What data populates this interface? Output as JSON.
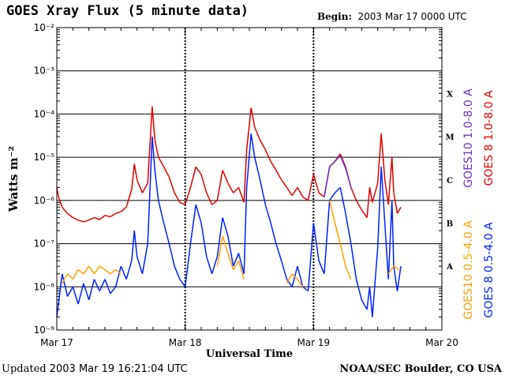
{
  "header": {
    "title": "GOES Xray Flux (5 minute data)",
    "begin_label": "Begin:",
    "begin_value": "2003 Mar 17 0000 UTC"
  },
  "footer": {
    "updated_label": "Updated",
    "updated_value": "2003 Mar 19 16:21:04 UTC",
    "credit": "NOAA/SEC Boulder, CO USA"
  },
  "colors": {
    "goes8_short": "#0020ff",
    "goes10_short": "#ffa000",
    "goes10_long": "#7030c0",
    "goes8_long": "#e00000"
  },
  "chart_data": {
    "type": "line",
    "xlabel": "Universal Time",
    "ylabel": "Watts m⁻²",
    "y_scale": "log",
    "ylim": [
      1e-09,
      0.01
    ],
    "xlim": [
      "2003-03-17",
      "2003-03-20"
    ],
    "x_ticks": [
      "Mar 17",
      "Mar 18",
      "Mar 19",
      "Mar 20"
    ],
    "y_ticks": [
      {
        "value": 1e-09,
        "label": "10⁻⁹"
      },
      {
        "value": 1e-08,
        "label": "10⁻⁸"
      },
      {
        "value": 1e-07,
        "label": "10⁻⁷"
      },
      {
        "value": 1e-06,
        "label": "10⁻⁶"
      },
      {
        "value": 1e-05,
        "label": "10⁻⁵"
      },
      {
        "value": 0.0001,
        "label": "10⁻⁴"
      },
      {
        "value": 0.001,
        "label": "10⁻³"
      },
      {
        "value": 0.01,
        "label": "10⁻²"
      }
    ],
    "flare_classes": [
      {
        "label": "A",
        "y": 3e-08
      },
      {
        "label": "B",
        "y": 3e-07
      },
      {
        "label": "C",
        "y": 3e-06
      },
      {
        "label": "M",
        "y": 3e-05
      },
      {
        "label": "X",
        "y": 0.0003
      }
    ],
    "grid_y": true,
    "legend_position": "right-outside",
    "series": [
      {
        "name": "GOES 8 1.0-8.0 A",
        "color": "#e00000",
        "points": [
          [
            "2003-03-17 00:00",
            2e-06
          ],
          [
            "2003-03-17 00:20",
            1.2e-06
          ],
          [
            "2003-03-17 01:00",
            7e-07
          ],
          [
            "2003-03-17 02:00",
            5e-07
          ],
          [
            "2003-03-17 03:00",
            4e-07
          ],
          [
            "2003-03-17 04:00",
            3.5e-07
          ],
          [
            "2003-03-17 05:00",
            3.2e-07
          ],
          [
            "2003-03-17 06:00",
            3.5e-07
          ],
          [
            "2003-03-17 07:00",
            4e-07
          ],
          [
            "2003-03-17 08:00",
            3.6e-07
          ],
          [
            "2003-03-17 09:00",
            4.5e-07
          ],
          [
            "2003-03-17 10:00",
            4.2e-07
          ],
          [
            "2003-03-17 11:00",
            5e-07
          ],
          [
            "2003-03-17 12:00",
            5.5e-07
          ],
          [
            "2003-03-17 13:00",
            7e-07
          ],
          [
            "2003-03-17 14:00",
            1.8e-06
          ],
          [
            "2003-03-17 14:30",
            7e-06
          ],
          [
            "2003-03-17 15:00",
            3e-06
          ],
          [
            "2003-03-17 16:00",
            1.5e-06
          ],
          [
            "2003-03-17 17:00",
            2.5e-06
          ],
          [
            "2003-03-17 17:50",
            0.00015
          ],
          [
            "2003-03-17 18:20",
            2.5e-05
          ],
          [
            "2003-03-17 19:00",
            1e-05
          ],
          [
            "2003-03-17 20:00",
            6e-06
          ],
          [
            "2003-03-17 21:00",
            3.5e-06
          ],
          [
            "2003-03-17 22:00",
            1.5e-06
          ],
          [
            "2003-03-17 23:00",
            9e-07
          ],
          [
            "2003-03-18 00:00",
            8e-07
          ],
          [
            "2003-03-18 01:00",
            2e-06
          ],
          [
            "2003-03-18 02:00",
            6e-06
          ],
          [
            "2003-03-18 03:00",
            4e-06
          ],
          [
            "2003-03-18 04:00",
            1.5e-06
          ],
          [
            "2003-03-18 05:00",
            8e-07
          ],
          [
            "2003-03-18 06:00",
            1e-06
          ],
          [
            "2003-03-18 07:00",
            5e-06
          ],
          [
            "2003-03-18 08:00",
            2.5e-06
          ],
          [
            "2003-03-18 09:00",
            1.5e-06
          ],
          [
            "2003-03-18 10:00",
            2e-06
          ],
          [
            "2003-03-18 11:00",
            9e-07
          ],
          [
            "2003-03-18 11:30",
            1.5e-05
          ],
          [
            "2003-03-18 12:20",
            0.00014
          ],
          [
            "2003-03-18 13:00",
            5e-05
          ],
          [
            "2003-03-18 14:00",
            2.5e-05
          ],
          [
            "2003-03-18 15:00",
            1.5e-05
          ],
          [
            "2003-03-18 16:00",
            8e-06
          ],
          [
            "2003-03-18 17:00",
            5e-06
          ],
          [
            "2003-03-18 18:00",
            3e-06
          ],
          [
            "2003-03-18 19:00",
            2e-06
          ],
          [
            "2003-03-18 20:00",
            1.3e-06
          ],
          [
            "2003-03-18 21:00",
            2e-06
          ],
          [
            "2003-03-18 22:00",
            1.2e-06
          ],
          [
            "2003-03-18 23:00",
            1e-06
          ],
          [
            "2003-03-19 00:00",
            4e-06
          ],
          [
            "2003-03-19 01:00",
            1.5e-06
          ],
          [
            "2003-03-19 02:00",
            1.2e-06
          ],
          [
            "2003-03-19 03:00",
            6e-06
          ],
          [
            "2003-03-19 04:00",
            8e-06
          ],
          [
            "2003-03-19 05:00",
            1.2e-05
          ],
          [
            "2003-03-19 06:00",
            6e-06
          ],
          [
            "2003-03-19 07:00",
            2e-06
          ],
          [
            "2003-03-19 08:00",
            1e-06
          ],
          [
            "2003-03-19 09:00",
            6e-07
          ],
          [
            "2003-03-19 10:00",
            4e-07
          ],
          [
            "2003-03-19 10:30",
            2e-06
          ],
          [
            "2003-03-19 11:00",
            9e-07
          ],
          [
            "2003-03-19 12:00",
            2.5e-06
          ],
          [
            "2003-03-19 12:40",
            3.5e-05
          ],
          [
            "2003-03-19 13:20",
            3e-06
          ],
          [
            "2003-03-19 14:00",
            8e-07
          ],
          [
            "2003-03-19 14:40",
            1e-05
          ],
          [
            "2003-03-19 15:00",
            1.5e-06
          ],
          [
            "2003-03-19 15:40",
            5e-07
          ],
          [
            "2003-03-19 16:20",
            7e-07
          ]
        ]
      },
      {
        "name": "GOES10 1.0-8.0 A",
        "color": "#7030c0",
        "points": [
          [
            "2003-03-19 02:00",
            1.2e-06
          ],
          [
            "2003-03-19 03:00",
            6e-06
          ],
          [
            "2003-03-19 04:00",
            8e-06
          ],
          [
            "2003-03-19 05:00",
            1.1e-05
          ],
          [
            "2003-03-19 06:00",
            5.5e-06
          ],
          [
            "2003-03-19 07:00",
            2e-06
          ]
        ]
      },
      {
        "name": "GOES 8 0.5-4.0 A",
        "color": "#0020ff",
        "points": [
          [
            "2003-03-17 00:00",
            2e-09
          ],
          [
            "2003-03-17 01:00",
            2e-08
          ],
          [
            "2003-03-17 02:00",
            6e-09
          ],
          [
            "2003-03-17 03:00",
            1e-08
          ],
          [
            "2003-03-17 04:00",
            4e-09
          ],
          [
            "2003-03-17 05:00",
            1.2e-08
          ],
          [
            "2003-03-17 06:00",
            5e-09
          ],
          [
            "2003-03-17 07:00",
            1.5e-08
          ],
          [
            "2003-03-17 08:00",
            8e-09
          ],
          [
            "2003-03-17 09:00",
            1.5e-08
          ],
          [
            "2003-03-17 10:00",
            7e-09
          ],
          [
            "2003-03-17 11:00",
            1e-08
          ],
          [
            "2003-03-17 12:00",
            3e-08
          ],
          [
            "2003-03-17 13:00",
            1.5e-08
          ],
          [
            "2003-03-17 14:00",
            4e-08
          ],
          [
            "2003-03-17 14:30",
            2e-07
          ],
          [
            "2003-03-17 15:00",
            5e-08
          ],
          [
            "2003-03-17 16:00",
            2e-08
          ],
          [
            "2003-03-17 17:00",
            1e-07
          ],
          [
            "2003-03-17 17:50",
            3e-05
          ],
          [
            "2003-03-17 18:20",
            5e-06
          ],
          [
            "2003-03-17 19:00",
            1e-06
          ],
          [
            "2003-03-17 20:00",
            3e-07
          ],
          [
            "2003-03-17 21:00",
            1e-07
          ],
          [
            "2003-03-17 22:00",
            3e-08
          ],
          [
            "2003-03-17 23:00",
            1.5e-08
          ],
          [
            "2003-03-18 00:00",
            1e-08
          ],
          [
            "2003-03-18 01:00",
            1e-07
          ],
          [
            "2003-03-18 02:00",
            8e-07
          ],
          [
            "2003-03-18 03:00",
            3e-07
          ],
          [
            "2003-03-18 04:00",
            5e-08
          ],
          [
            "2003-03-18 05:00",
            2e-08
          ],
          [
            "2003-03-18 06:00",
            5e-08
          ],
          [
            "2003-03-18 07:00",
            4e-07
          ],
          [
            "2003-03-18 08:00",
            1.5e-07
          ],
          [
            "2003-03-18 09:00",
            3e-08
          ],
          [
            "2003-03-18 10:00",
            6e-08
          ],
          [
            "2003-03-18 11:00",
            2e-08
          ],
          [
            "2003-03-18 11:30",
            2e-06
          ],
          [
            "2003-03-18 12:20",
            3.5e-05
          ],
          [
            "2003-03-18 13:00",
            1e-05
          ],
          [
            "2003-03-18 14:00",
            3e-06
          ],
          [
            "2003-03-18 15:00",
            8e-07
          ],
          [
            "2003-03-18 16:00",
            3e-07
          ],
          [
            "2003-03-18 17:00",
            1e-07
          ],
          [
            "2003-03-18 18:00",
            4e-08
          ],
          [
            "2003-03-18 19:00",
            1.5e-08
          ],
          [
            "2003-03-18 20:00",
            1e-08
          ],
          [
            "2003-03-18 21:00",
            3e-08
          ],
          [
            "2003-03-18 22:00",
            1e-08
          ],
          [
            "2003-03-18 23:00",
            8e-09
          ],
          [
            "2003-03-19 00:00",
            3e-07
          ],
          [
            "2003-03-19 01:00",
            4e-08
          ],
          [
            "2003-03-19 02:00",
            2e-08
          ],
          [
            "2003-03-19 03:00",
            1e-06
          ],
          [
            "2003-03-19 04:00",
            1.5e-06
          ],
          [
            "2003-03-19 05:00",
            2e-06
          ],
          [
            "2003-03-19 06:00",
            5e-07
          ],
          [
            "2003-03-19 07:00",
            1e-07
          ],
          [
            "2003-03-19 08:00",
            1.5e-08
          ],
          [
            "2003-03-19 09:00",
            5e-09
          ],
          [
            "2003-03-19 10:00",
            3e-09
          ],
          [
            "2003-03-19 10:30",
            1e-08
          ],
          [
            "2003-03-19 11:00",
            2e-09
          ],
          [
            "2003-03-19 12:00",
            8e-08
          ],
          [
            "2003-03-19 12:40",
            6e-06
          ],
          [
            "2003-03-19 13:20",
            3e-07
          ],
          [
            "2003-03-19 14:00",
            1.5e-08
          ],
          [
            "2003-03-19 14:40",
            1e-06
          ],
          [
            "2003-03-19 15:00",
            3e-08
          ],
          [
            "2003-03-19 15:40",
            8e-09
          ],
          [
            "2003-03-19 16:20",
            3e-08
          ]
        ]
      },
      {
        "name": "GOES10 0.5-4.0 A",
        "color": "#ffa000",
        "points": [
          [
            "2003-03-17 01:00",
            1.2e-08
          ],
          [
            "2003-03-17 02:00",
            2e-08
          ],
          [
            "2003-03-17 03:00",
            1.5e-08
          ],
          [
            "2003-03-17 04:00",
            2.5e-08
          ],
          [
            "2003-03-17 05:00",
            2e-08
          ],
          [
            "2003-03-17 06:00",
            3e-08
          ],
          [
            "2003-03-17 07:00",
            2e-08
          ],
          [
            "2003-03-17 08:00",
            3e-08
          ],
          [
            "2003-03-17 09:00",
            2.5e-08
          ],
          [
            "2003-03-17 10:00",
            2e-08
          ],
          [
            "2003-03-17 11:00",
            2.5e-08
          ],
          [
            "2003-03-17 12:00",
            2e-08
          ],
          [
            "2003-03-18 06:00",
            3e-08
          ],
          [
            "2003-03-18 07:00",
            1.5e-07
          ],
          [
            "2003-03-18 08:00",
            6e-08
          ],
          [
            "2003-03-18 09:00",
            2.5e-08
          ],
          [
            "2003-03-18 10:00",
            4e-08
          ],
          [
            "2003-03-18 11:00",
            1.5e-08
          ],
          [
            "2003-03-18 19:00",
            1.2e-08
          ],
          [
            "2003-03-18 20:00",
            2e-08
          ],
          [
            "2003-03-18 21:00",
            1.5e-08
          ],
          [
            "2003-03-18 22:00",
            1e-08
          ],
          [
            "2003-03-19 03:00",
            1e-06
          ],
          [
            "2003-03-19 04:00",
            3e-07
          ],
          [
            "2003-03-19 05:00",
            1e-07
          ],
          [
            "2003-03-19 06:00",
            3e-08
          ],
          [
            "2003-03-19 07:00",
            1.5e-08
          ],
          [
            "2003-03-19 14:00",
            2e-08
          ],
          [
            "2003-03-19 15:00",
            3e-08
          ],
          [
            "2003-03-19 16:00",
            2.5e-08
          ]
        ]
      }
    ]
  }
}
